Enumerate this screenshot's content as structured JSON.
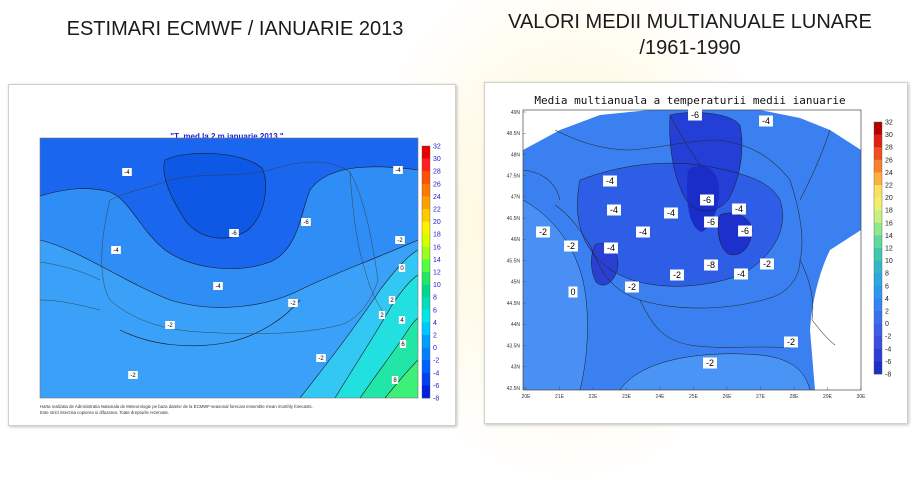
{
  "slide": {
    "left_heading": "ESTIMARI ECMWF / IANUARIE 2013",
    "right_heading_line1": "VALORI MEDII MULTIANUALE LUNARE",
    "right_heading_line2": "/1961-1990"
  },
  "left_map": {
    "title": "\"T_med la 2 m ianuarie 2013 \"",
    "footnote_line1": "Harta realizata de Administratia Nationala de Meteorologie pe baza datelor de la ECMWF-seasonal forecast ensemble mean monthly forecasts.",
    "footnote_line2": "Este strict interzisa copierea si difuzarea. Toate drepturile rezervate.",
    "colorbar_ticks": [
      "32",
      "30",
      "28",
      "26",
      "24",
      "22",
      "20",
      "18",
      "16",
      "14",
      "12",
      "10",
      "8",
      "6",
      "4",
      "2",
      "0",
      "-2",
      "-4",
      "-6",
      "-8"
    ],
    "contour_labels": [
      "-4",
      "-4",
      "-6",
      "-6",
      "-4",
      "-4",
      "-2",
      "-2",
      "-2",
      "-2",
      "-2",
      "0",
      "2",
      "2",
      "4",
      "6",
      "8"
    ]
  },
  "right_map": {
    "title": "Media multianuala a temperaturii medii ianuarie",
    "lat_ticks": [
      "49N",
      "48.5N",
      "48N",
      "47.5N",
      "47N",
      "46.5N",
      "46N",
      "45.5N",
      "45N",
      "44.5N",
      "44N",
      "43.5N",
      "43N",
      "42.5N"
    ],
    "lon_ticks": [
      "20E",
      "21E",
      "22E",
      "23E",
      "24E",
      "25E",
      "26E",
      "27E",
      "28E",
      "29E",
      "30E"
    ],
    "colorbar_ticks": [
      "32",
      "30",
      "28",
      "26",
      "24",
      "22",
      "20",
      "18",
      "16",
      "14",
      "12",
      "10",
      "8",
      "6",
      "4",
      "2",
      "0",
      "-2",
      "-4",
      "-6",
      "-8"
    ],
    "contour_labels": [
      "-6",
      "-4",
      "-4",
      "-6",
      "-4",
      "-4",
      "-4",
      "-6",
      "-6",
      "-4",
      "-2",
      "-4",
      "-2",
      "-8",
      "-2",
      "-4",
      "-2",
      "-2",
      "0",
      "-2",
      "-2"
    ]
  },
  "colors": {
    "left_scale": [
      "#e60000",
      "#ff2020",
      "#ff5000",
      "#ff7a00",
      "#ffa000",
      "#ffc800",
      "#fff000",
      "#d4ff00",
      "#9cff1a",
      "#50ff40",
      "#20e860",
      "#00d890",
      "#00e0c0",
      "#00e8e8",
      "#00c8ff",
      "#00a0ff",
      "#0080ff",
      "#0060ff",
      "#0040f0",
      "#0020e0"
    ],
    "right_scale": [
      "#b40000",
      "#e02010",
      "#f05020",
      "#f88030",
      "#fcb040",
      "#fde060",
      "#f0f070",
      "#c8f080",
      "#90e890",
      "#60d8a0",
      "#40c8b0",
      "#30b8c8",
      "#2aa8e0",
      "#2e98f0",
      "#3484f4",
      "#3870f0",
      "#3c5ee8",
      "#3a4ee0",
      "#2e3ed8",
      "#1e2ec8"
    ]
  }
}
